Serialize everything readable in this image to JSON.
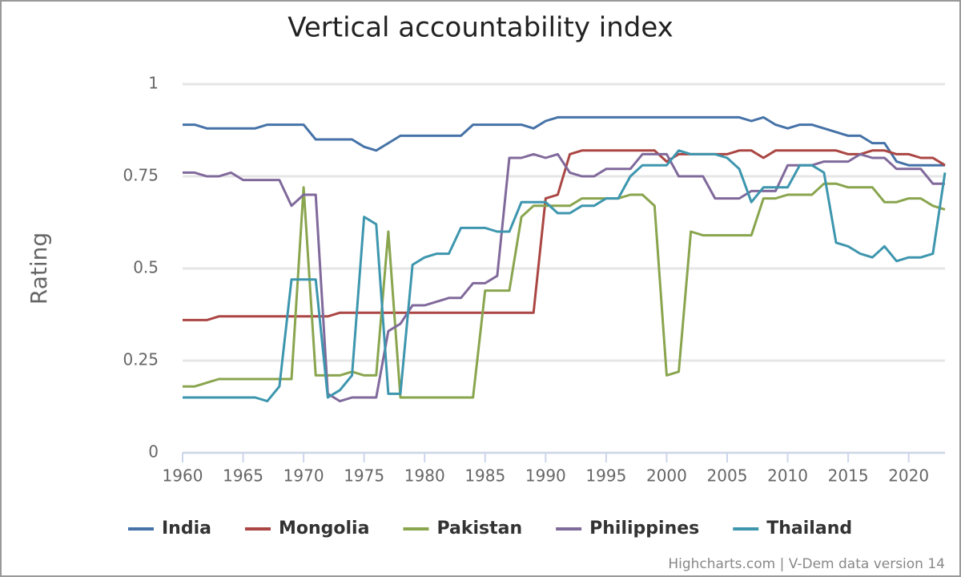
{
  "chart_data": {
    "type": "line",
    "title": "Vertical accountability index",
    "y_label": "Rating",
    "credit": "Highcharts.com | V-Dem data version 14",
    "x": [
      1960,
      1961,
      1962,
      1963,
      1964,
      1965,
      1966,
      1967,
      1968,
      1969,
      1970,
      1971,
      1972,
      1973,
      1974,
      1975,
      1976,
      1977,
      1978,
      1979,
      1980,
      1981,
      1982,
      1983,
      1984,
      1985,
      1986,
      1987,
      1988,
      1989,
      1990,
      1991,
      1992,
      1993,
      1994,
      1995,
      1996,
      1997,
      1998,
      1999,
      2000,
      2001,
      2002,
      2003,
      2004,
      2005,
      2006,
      2007,
      2008,
      2009,
      2010,
      2011,
      2012,
      2013,
      2014,
      2015,
      2016,
      2017,
      2018,
      2019,
      2020,
      2021,
      2022,
      2023
    ],
    "xlim": [
      1960,
      2023
    ],
    "xticks": [
      1960,
      1965,
      1970,
      1975,
      1980,
      1985,
      1990,
      1995,
      2000,
      2005,
      2010,
      2015,
      2020
    ],
    "ylim": [
      0,
      1
    ],
    "yticks": [
      0,
      0.25,
      0.5,
      0.75,
      1
    ],
    "grid": true,
    "series": [
      {
        "name": "India",
        "color": "#4572a7",
        "values": [
          0.89,
          0.89,
          0.88,
          0.88,
          0.88,
          0.88,
          0.88,
          0.89,
          0.89,
          0.89,
          0.89,
          0.85,
          0.85,
          0.85,
          0.85,
          0.83,
          0.82,
          0.84,
          0.86,
          0.86,
          0.86,
          0.86,
          0.86,
          0.86,
          0.89,
          0.89,
          0.89,
          0.89,
          0.89,
          0.88,
          0.9,
          0.91,
          0.91,
          0.91,
          0.91,
          0.91,
          0.91,
          0.91,
          0.91,
          0.91,
          0.91,
          0.91,
          0.91,
          0.91,
          0.91,
          0.91,
          0.91,
          0.9,
          0.91,
          0.89,
          0.88,
          0.89,
          0.89,
          0.88,
          0.87,
          0.86,
          0.86,
          0.84,
          0.84,
          0.79,
          0.78,
          0.78,
          0.78,
          0.78
        ]
      },
      {
        "name": "Mongolia",
        "color": "#aa4643",
        "values": [
          0.36,
          0.36,
          0.36,
          0.37,
          0.37,
          0.37,
          0.37,
          0.37,
          0.37,
          0.37,
          0.37,
          0.37,
          0.37,
          0.38,
          0.38,
          0.38,
          0.38,
          0.38,
          0.38,
          0.38,
          0.38,
          0.38,
          0.38,
          0.38,
          0.38,
          0.38,
          0.38,
          0.38,
          0.38,
          0.38,
          0.69,
          0.7,
          0.81,
          0.82,
          0.82,
          0.82,
          0.82,
          0.82,
          0.82,
          0.82,
          0.79,
          0.81,
          0.81,
          0.81,
          0.81,
          0.81,
          0.82,
          0.82,
          0.8,
          0.82,
          0.82,
          0.82,
          0.82,
          0.82,
          0.82,
          0.81,
          0.81,
          0.82,
          0.82,
          0.81,
          0.81,
          0.8,
          0.8,
          0.78
        ]
      },
      {
        "name": "Pakistan",
        "color": "#89a54e",
        "values": [
          0.18,
          0.18,
          0.19,
          0.2,
          0.2,
          0.2,
          0.2,
          0.2,
          0.2,
          0.2,
          0.72,
          0.21,
          0.21,
          0.21,
          0.22,
          0.21,
          0.21,
          0.6,
          0.15,
          0.15,
          0.15,
          0.15,
          0.15,
          0.15,
          0.15,
          0.44,
          0.44,
          0.44,
          0.64,
          0.67,
          0.67,
          0.67,
          0.67,
          0.69,
          0.69,
          0.69,
          0.69,
          0.7,
          0.7,
          0.67,
          0.21,
          0.22,
          0.6,
          0.59,
          0.59,
          0.59,
          0.59,
          0.59,
          0.69,
          0.69,
          0.7,
          0.7,
          0.7,
          0.73,
          0.73,
          0.72,
          0.72,
          0.72,
          0.68,
          0.68,
          0.69,
          0.69,
          0.67,
          0.66
        ]
      },
      {
        "name": "Philippines",
        "color": "#80699b",
        "values": [
          0.76,
          0.76,
          0.75,
          0.75,
          0.76,
          0.74,
          0.74,
          0.74,
          0.74,
          0.67,
          0.7,
          0.7,
          0.16,
          0.14,
          0.15,
          0.15,
          0.15,
          0.33,
          0.35,
          0.4,
          0.4,
          0.41,
          0.42,
          0.42,
          0.46,
          0.46,
          0.48,
          0.8,
          0.8,
          0.81,
          0.8,
          0.81,
          0.76,
          0.75,
          0.75,
          0.77,
          0.77,
          0.77,
          0.81,
          0.81,
          0.81,
          0.75,
          0.75,
          0.75,
          0.69,
          0.69,
          0.69,
          0.71,
          0.71,
          0.71,
          0.78,
          0.78,
          0.78,
          0.79,
          0.79,
          0.79,
          0.81,
          0.8,
          0.8,
          0.77,
          0.77,
          0.77,
          0.73,
          0.73
        ]
      },
      {
        "name": "Thailand",
        "color": "#3d96ae",
        "values": [
          0.15,
          0.15,
          0.15,
          0.15,
          0.15,
          0.15,
          0.15,
          0.14,
          0.18,
          0.47,
          0.47,
          0.47,
          0.15,
          0.17,
          0.21,
          0.64,
          0.62,
          0.16,
          0.16,
          0.51,
          0.53,
          0.54,
          0.54,
          0.61,
          0.61,
          0.61,
          0.6,
          0.6,
          0.68,
          0.68,
          0.68,
          0.65,
          0.65,
          0.67,
          0.67,
          0.69,
          0.69,
          0.75,
          0.78,
          0.78,
          0.78,
          0.82,
          0.81,
          0.81,
          0.81,
          0.8,
          0.77,
          0.68,
          0.72,
          0.72,
          0.72,
          0.78,
          0.78,
          0.76,
          0.57,
          0.56,
          0.54,
          0.53,
          0.56,
          0.52,
          0.53,
          0.53,
          0.54,
          0.76
        ]
      }
    ]
  }
}
